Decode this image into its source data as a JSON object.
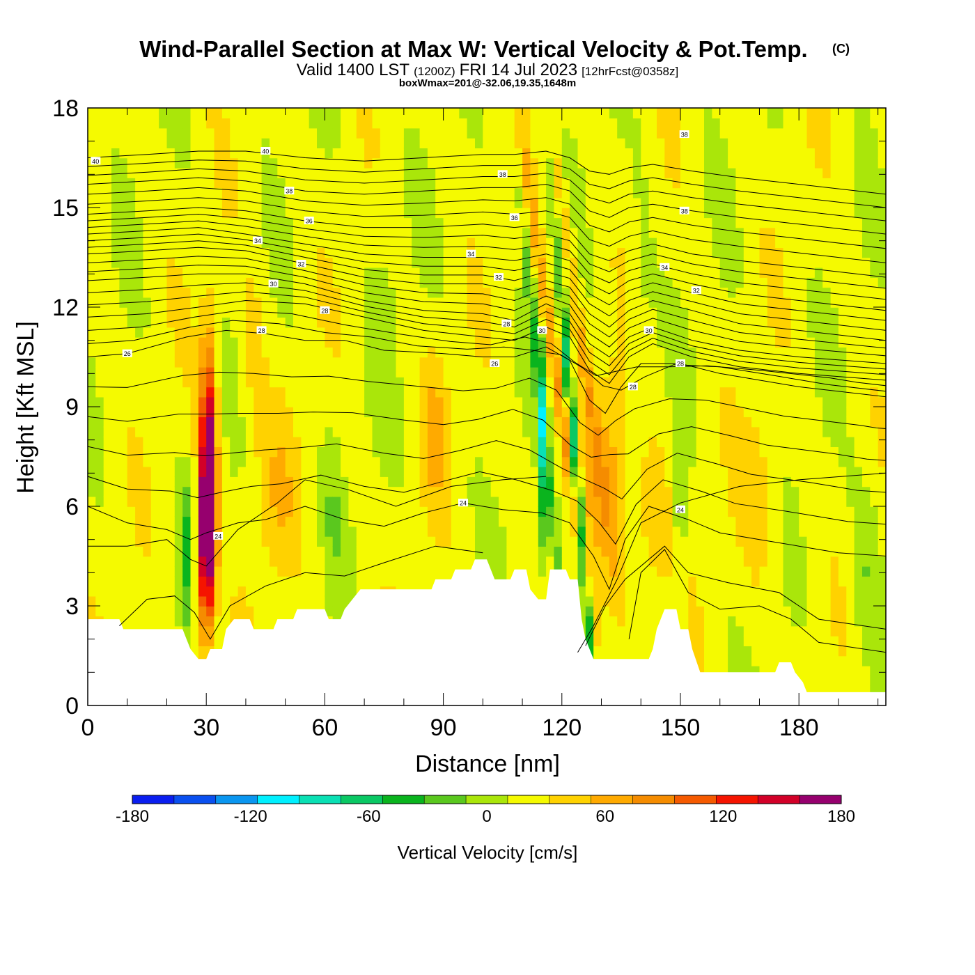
{
  "title": {
    "main": "Wind-Parallel Section at Max W: Vertical Velocity & Pot.Temp.",
    "copyright": "(C)",
    "valid_prefix": "Valid 1400 LST",
    "valid_utc": "(1200Z)",
    "valid_date": "FRI 14 Jul 2023",
    "forecast": "[12hrFcst@0358z]",
    "box_info": "boxWmax=201@-32.06,19.35,1648m"
  },
  "chart_data": {
    "type": "heatmap",
    "xlabel": "Distance [nm]",
    "ylabel": "Height [Kft MSL]",
    "xlim": [
      0,
      202
    ],
    "ylim": [
      0,
      18
    ],
    "x_ticks": [
      "0",
      "30",
      "60",
      "90",
      "120",
      "150",
      "180"
    ],
    "y_ticks": [
      "0",
      "3",
      "6",
      "9",
      "12",
      "15",
      "18"
    ],
    "field": "Vertical Velocity [cm/s]",
    "contour_field": "Potential Temperature",
    "colorbar": {
      "label": "Vertical Velocity [cm/s]",
      "ticks": [
        "-180",
        "-120",
        "-60",
        "0",
        "60",
        "120",
        "180"
      ],
      "min": -180,
      "max": 180,
      "step": 20,
      "colors": [
        "#0a1ef0",
        "#0a50f0",
        "#0a96f0",
        "#00f0ff",
        "#0ae0b4",
        "#0ac864",
        "#0ab41e",
        "#5ac81e",
        "#aae60a",
        "#f5fa00",
        "#ffd200",
        "#ffaa00",
        "#f58c00",
        "#f55a00",
        "#f51400",
        "#d20028",
        "#96006e"
      ]
    },
    "terrain_kft": [
      [
        0,
        2.6
      ],
      [
        8,
        2.6
      ],
      [
        9,
        2.3
      ],
      [
        24,
        2.3
      ],
      [
        25,
        2.0
      ],
      [
        26,
        1.7
      ],
      [
        28,
        1.4
      ],
      [
        30,
        1.4
      ],
      [
        31,
        1.7
      ],
      [
        34,
        1.7
      ],
      [
        35,
        2.3
      ],
      [
        37,
        2.6
      ],
      [
        41,
        2.6
      ],
      [
        42,
        2.3
      ],
      [
        47,
        2.3
      ],
      [
        48,
        2.6
      ],
      [
        52,
        2.6
      ],
      [
        53,
        2.9
      ],
      [
        60,
        2.9
      ],
      [
        61,
        2.6
      ],
      [
        64,
        2.6
      ],
      [
        65,
        2.9
      ],
      [
        67,
        3.2
      ],
      [
        69,
        3.5
      ],
      [
        87,
        3.5
      ],
      [
        88,
        3.8
      ],
      [
        92,
        3.8
      ],
      [
        93,
        4.1
      ],
      [
        97,
        4.1
      ],
      [
        98,
        4.4
      ],
      [
        101,
        4.4
      ],
      [
        102,
        4.1
      ],
      [
        103,
        3.8
      ],
      [
        107,
        3.8
      ],
      [
        108,
        4.1
      ],
      [
        111,
        4.1
      ],
      [
        112,
        3.5
      ],
      [
        114,
        3.2
      ],
      [
        116,
        3.2
      ],
      [
        117,
        4.1
      ],
      [
        121,
        4.1
      ],
      [
        122,
        3.8
      ],
      [
        124,
        3.8
      ],
      [
        125,
        2.6
      ],
      [
        126,
        2.0
      ],
      [
        127,
        1.7
      ],
      [
        128,
        1.4
      ],
      [
        142,
        1.4
      ],
      [
        143,
        1.7
      ],
      [
        144,
        2.3
      ],
      [
        146,
        2.9
      ],
      [
        149,
        2.9
      ],
      [
        150,
        2.3
      ],
      [
        152,
        2.3
      ],
      [
        153,
        1.7
      ],
      [
        155,
        1.0
      ],
      [
        174,
        1.0
      ],
      [
        175,
        1.3
      ],
      [
        178,
        1.3
      ],
      [
        179,
        1.0
      ],
      [
        181,
        0.7
      ],
      [
        182,
        0.4
      ],
      [
        202,
        0.4
      ]
    ],
    "theta_contours": [
      {
        "label": "24",
        "points": [
          [
            0,
            6.0
          ],
          [
            10,
            5.5
          ],
          [
            20,
            5.3
          ],
          [
            26,
            5.0
          ],
          [
            30,
            5.2
          ],
          [
            38,
            5.5
          ],
          [
            45,
            5.6
          ],
          [
            55,
            6.0
          ],
          [
            65,
            5.6
          ],
          [
            75,
            5.4
          ],
          [
            85,
            5.8
          ],
          [
            95,
            6.1
          ],
          [
            105,
            5.9
          ],
          [
            115,
            5.8
          ],
          [
            122,
            5.5
          ],
          [
            128,
            4.5
          ],
          [
            132,
            3.5
          ],
          [
            136,
            5.0
          ],
          [
            142,
            6.0
          ],
          [
            152,
            5.6
          ],
          [
            160,
            5.2
          ],
          [
            170,
            5.0
          ],
          [
            180,
            4.8
          ],
          [
            190,
            4.6
          ],
          [
            202,
            4.5
          ]
        ]
      },
      {
        "label": "26",
        "points": [
          [
            0,
            10.5
          ],
          [
            10,
            10.6
          ],
          [
            25,
            11.1
          ],
          [
            35,
            11.3
          ],
          [
            45,
            11.2
          ],
          [
            55,
            11.0
          ],
          [
            65,
            11.0
          ],
          [
            75,
            10.7
          ],
          [
            90,
            10.6
          ],
          [
            100,
            10.5
          ],
          [
            108,
            10.5
          ],
          [
            116,
            10.8
          ],
          [
            122,
            10.4
          ],
          [
            127,
            9.2
          ],
          [
            131,
            8.8
          ],
          [
            135,
            9.6
          ],
          [
            140,
            10.3
          ],
          [
            150,
            10.3
          ],
          [
            160,
            10.0
          ],
          [
            170,
            9.8
          ],
          [
            180,
            9.6
          ],
          [
            202,
            9.3
          ]
        ]
      },
      {
        "label": "28",
        "points": [
          [
            0,
            11.7
          ],
          [
            15,
            11.8
          ],
          [
            28,
            12.0
          ],
          [
            40,
            12.2
          ],
          [
            55,
            12.1
          ],
          [
            70,
            11.7
          ],
          [
            85,
            11.3
          ],
          [
            100,
            11.1
          ],
          [
            108,
            11.0
          ],
          [
            116,
            11.4
          ],
          [
            122,
            11.1
          ],
          [
            127,
            10.1
          ],
          [
            132,
            9.7
          ],
          [
            137,
            10.5
          ],
          [
            143,
            10.9
          ],
          [
            153,
            10.5
          ],
          [
            165,
            10.2
          ],
          [
            180,
            10.0
          ],
          [
            202,
            9.8
          ]
        ]
      },
      {
        "label": "30",
        "points": [
          [
            0,
            12.8
          ],
          [
            15,
            12.9
          ],
          [
            28,
            13.0
          ],
          [
            40,
            13.0
          ],
          [
            55,
            12.7
          ],
          [
            70,
            12.2
          ],
          [
            85,
            11.9
          ],
          [
            100,
            11.8
          ],
          [
            108,
            11.6
          ],
          [
            116,
            12.1
          ],
          [
            122,
            11.8
          ],
          [
            127,
            10.9
          ],
          [
            132,
            10.5
          ],
          [
            137,
            11.1
          ],
          [
            143,
            11.4
          ],
          [
            153,
            11.0
          ],
          [
            165,
            10.7
          ],
          [
            180,
            10.5
          ],
          [
            202,
            10.3
          ]
        ]
      },
      {
        "label": "32",
        "points": [
          [
            0,
            13.6
          ],
          [
            15,
            13.7
          ],
          [
            28,
            13.8
          ],
          [
            40,
            13.7
          ],
          [
            55,
            13.3
          ],
          [
            70,
            12.9
          ],
          [
            85,
            12.7
          ],
          [
            100,
            12.7
          ],
          [
            108,
            12.5
          ],
          [
            116,
            12.8
          ],
          [
            122,
            12.6
          ],
          [
            127,
            11.8
          ],
          [
            132,
            11.4
          ],
          [
            137,
            11.9
          ],
          [
            143,
            12.2
          ],
          [
            153,
            11.9
          ],
          [
            165,
            11.5
          ],
          [
            180,
            11.3
          ],
          [
            202,
            11.0
          ]
        ]
      },
      {
        "label": "34",
        "points": [
          [
            0,
            14.2
          ],
          [
            15,
            14.3
          ],
          [
            28,
            14.4
          ],
          [
            40,
            14.2
          ],
          [
            55,
            13.9
          ],
          [
            70,
            13.6
          ],
          [
            85,
            13.5
          ],
          [
            100,
            13.5
          ],
          [
            108,
            13.4
          ],
          [
            116,
            13.6
          ],
          [
            122,
            13.4
          ],
          [
            127,
            12.7
          ],
          [
            132,
            12.4
          ],
          [
            137,
            12.8
          ],
          [
            143,
            13.0
          ],
          [
            153,
            12.7
          ],
          [
            165,
            12.4
          ],
          [
            180,
            12.2
          ],
          [
            202,
            11.9
          ]
        ]
      },
      {
        "label": "36",
        "points": [
          [
            0,
            14.8
          ],
          [
            15,
            14.9
          ],
          [
            28,
            15.0
          ],
          [
            40,
            14.9
          ],
          [
            55,
            14.6
          ],
          [
            70,
            14.4
          ],
          [
            85,
            14.4
          ],
          [
            100,
            14.5
          ],
          [
            108,
            14.4
          ],
          [
            116,
            14.5
          ],
          [
            122,
            14.3
          ],
          [
            127,
            13.6
          ],
          [
            132,
            13.4
          ],
          [
            137,
            13.7
          ],
          [
            143,
            13.9
          ],
          [
            153,
            13.6
          ],
          [
            165,
            13.4
          ],
          [
            180,
            13.2
          ],
          [
            202,
            12.9
          ]
        ]
      },
      {
        "label": "38",
        "points": [
          [
            0,
            15.7
          ],
          [
            15,
            15.8
          ],
          [
            28,
            15.9
          ],
          [
            40,
            15.8
          ],
          [
            55,
            15.5
          ],
          [
            70,
            15.4
          ],
          [
            85,
            15.5
          ],
          [
            100,
            15.6
          ],
          [
            108,
            15.6
          ],
          [
            116,
            15.7
          ],
          [
            122,
            15.5
          ],
          [
            127,
            14.9
          ],
          [
            132,
            14.7
          ],
          [
            137,
            15.0
          ],
          [
            143,
            15.1
          ],
          [
            153,
            14.9
          ],
          [
            165,
            14.7
          ],
          [
            180,
            14.5
          ],
          [
            202,
            14.2
          ]
        ]
      },
      {
        "label": "40",
        "points": [
          [
            0,
            16.5
          ],
          [
            15,
            16.6
          ],
          [
            28,
            16.7
          ],
          [
            40,
            16.7
          ],
          [
            55,
            16.5
          ],
          [
            70,
            16.4
          ],
          [
            85,
            16.5
          ],
          [
            100,
            16.6
          ],
          [
            108,
            16.6
          ],
          [
            116,
            16.7
          ],
          [
            122,
            16.5
          ],
          [
            127,
            16.1
          ],
          [
            132,
            16.0
          ],
          [
            137,
            16.2
          ],
          [
            143,
            16.3
          ],
          [
            153,
            16.1
          ],
          [
            165,
            15.9
          ],
          [
            180,
            15.7
          ],
          [
            202,
            15.4
          ]
        ]
      }
    ],
    "theta_labels": [
      {
        "text": "40",
        "x": 2,
        "y": 16.4
      },
      {
        "text": "40",
        "x": 45,
        "y": 16.7
      },
      {
        "text": "38",
        "x": 51,
        "y": 15.5
      },
      {
        "text": "36",
        "x": 56,
        "y": 14.6
      },
      {
        "text": "34",
        "x": 43,
        "y": 14.0
      },
      {
        "text": "32",
        "x": 54,
        "y": 13.3
      },
      {
        "text": "30",
        "x": 47,
        "y": 12.7
      },
      {
        "text": "28",
        "x": 60,
        "y": 11.9
      },
      {
        "text": "28",
        "x": 44,
        "y": 11.3
      },
      {
        "text": "26",
        "x": 10,
        "y": 10.6
      },
      {
        "text": "38",
        "x": 105,
        "y": 16.0
      },
      {
        "text": "36",
        "x": 108,
        "y": 14.7
      },
      {
        "text": "34",
        "x": 97,
        "y": 13.6
      },
      {
        "text": "32",
        "x": 104,
        "y": 12.9
      },
      {
        "text": "28",
        "x": 106,
        "y": 11.5
      },
      {
        "text": "30",
        "x": 115,
        "y": 11.3
      },
      {
        "text": "26",
        "x": 103,
        "y": 10.3
      },
      {
        "text": "24",
        "x": 95,
        "y": 6.1
      },
      {
        "text": "24",
        "x": 33,
        "y": 5.1
      },
      {
        "text": "38",
        "x": 151,
        "y": 17.2
      },
      {
        "text": "38",
        "x": 151,
        "y": 14.9
      },
      {
        "text": "34",
        "x": 146,
        "y": 13.2
      },
      {
        "text": "32",
        "x": 154,
        "y": 12.5
      },
      {
        "text": "30",
        "x": 142,
        "y": 11.3
      },
      {
        "text": "28",
        "x": 150,
        "y": 10.3
      },
      {
        "text": "28",
        "x": 138,
        "y": 9.6
      },
      {
        "text": "24",
        "x": 150,
        "y": 5.9
      }
    ]
  }
}
